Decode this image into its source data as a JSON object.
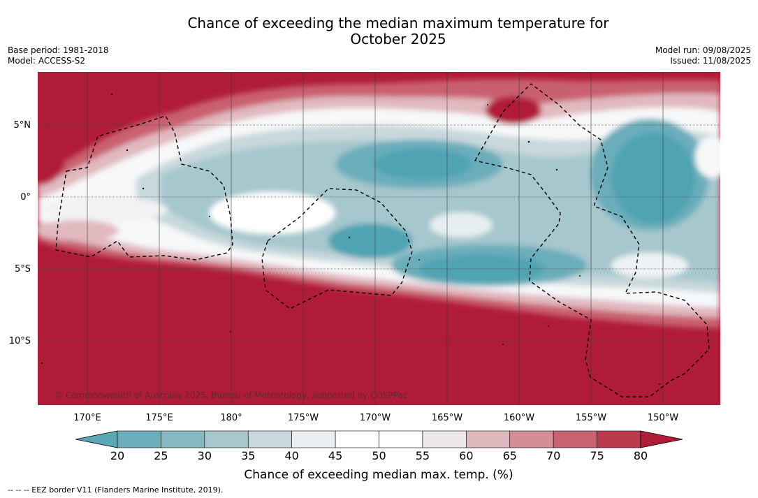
{
  "title_line1": "Chance of exceeding the median maximum temperature for",
  "title_line2": "October 2025",
  "base_period": "Base period: 1981-2018",
  "model": "Model: ACCESS-S2",
  "model_run": "Model run: 09/08/2025",
  "issued": "Issued: 11/08/2025",
  "copyright": "© Commonwealth of Australia 2025, Bureau of Meteorology, supported by COSPPac",
  "footer": "--  --  -- EEZ border V11 (Flanders Marine Institute, 2019).",
  "lat_labels": [
    "5°N",
    "0°",
    "5°S",
    "10°S"
  ],
  "lon_labels": [
    "170°E",
    "175°E",
    "180°",
    "175°W",
    "170°W",
    "165°W",
    "160°W",
    "155°W",
    "150°W"
  ],
  "colorbar": {
    "title": "Chance of exceeding median max. temp. (%)",
    "ticks": [
      "20",
      "25",
      "30",
      "35",
      "40",
      "45",
      "50",
      "55",
      "60",
      "65",
      "70",
      "75",
      "80"
    ],
    "colors": [
      "#5aa8b6",
      "#6aadbb",
      "#86b8c4",
      "#a6c7ce",
      "#c8d8dc",
      "#ebf0f2",
      "#ffffff",
      "#ffffff",
      "#eee8ea",
      "#dfb8be",
      "#d58d96",
      "#c8636f",
      "#bb3a4b",
      "#b01c38"
    ]
  },
  "map_colors": {
    "red_deep": "#b01c38",
    "blue_deep": "#4fa3b3"
  }
}
